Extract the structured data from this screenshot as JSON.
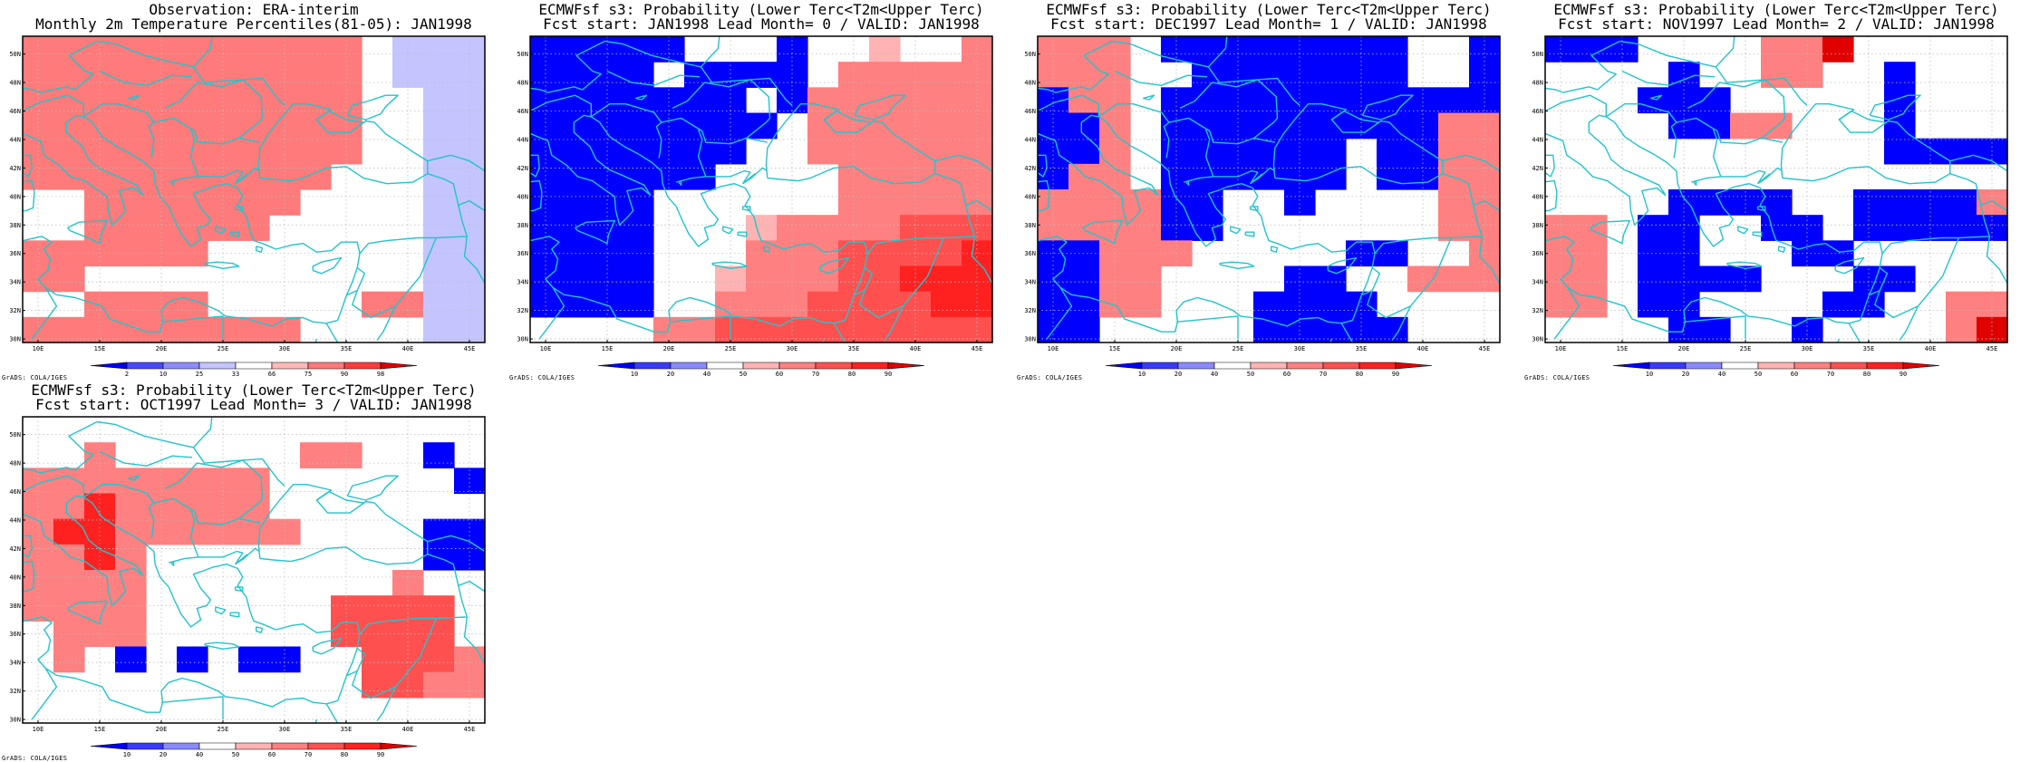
{
  "colors": {
    "coast": "#22c4cc",
    "frame": "#000000",
    "grid": "#bdbdbd"
  },
  "credit": "GrADS: COLA/IGES",
  "axis": {
    "lat_labels": [
      "30N",
      "32N",
      "34N",
      "36N",
      "38N",
      "40N",
      "42N",
      "44N",
      "46N",
      "48N",
      "50N"
    ],
    "lon_labels": [
      "10E",
      "15E",
      "20E",
      "25E",
      "30E",
      "35E",
      "40E",
      "45E"
    ]
  },
  "panels": [
    {
      "id": "obs",
      "title_lines": [
        "Observation: ERA-interim",
        "Monthly 2m Temperature Percentiles(81-05): JAN1998"
      ],
      "colorbar": {
        "labels": [
          "2",
          "10",
          "25",
          "33",
          "66",
          "75",
          "90",
          "98"
        ],
        "colors": [
          "#0000ff",
          "#4848ff",
          "#8c8cff",
          "#c4c4ff",
          "#ffffff",
          "#ffb8b8",
          "#ff7a7a",
          "#ff3a3a",
          "#e00000"
        ]
      },
      "chart_data": {
        "type": "heatmap",
        "x_range_deg_e": [
          8.75,
          46.25
        ],
        "y_range_deg_n": [
          29.75,
          51.25
        ],
        "levels_note": "1 very low, 2 low, 3 mod-low, 4 slight-low, 5 normal, 6 slight-high, 7 high, 8 very high",
        "rows_north_to_south": [
          "777777777775444",
          "777777777775444",
          "777777777775544",
          "777777777775544",
          "777777777775544",
          "777777777755544",
          "557777777555544",
          "557777775555544",
          "777777555555544",
          "775555555555544",
          "557777555557744",
          "777777777555544"
        ]
      }
    },
    {
      "id": "lead0",
      "title_lines": [
        "ECMWFsf s3: Probability (Lower Terc<T2m<Upper Terc)",
        "Fcst start: JAN1998  Lead Month= 0 / VALID: JAN1998"
      ],
      "colorbar": {
        "labels": [
          "10",
          "20",
          "40",
          "50",
          "60",
          "70",
          "80",
          "90"
        ],
        "colors": [
          "#0000ff",
          "#3a3aff",
          "#8a8aff",
          "#ffffff",
          "#ffb3b3",
          "#ff8080",
          "#ff5050",
          "#ff2020",
          "#e00000"
        ]
      },
      "chart_data": {
        "type": "heatmap",
        "x_range_deg_e": [
          8.75,
          46.25
        ],
        "y_range_deg_n": [
          29.75,
          51.25
        ],
        "levels_note": "probability class index 1..9 following the colorbar",
        "rows_north_to_south": [
          "111114441445446",
          "111141111466666",
          "111111141666666",
          "111111114666666",
          "111111144666666",
          "111111444466666",
          "111144444466666",
          "111144456666777",
          "111144466677778",
          "111144566677888",
          "111144666777788",
          "444466777777777"
        ]
      }
    },
    {
      "id": "lead1",
      "title_lines": [
        "ECMWFsf s3: Probability (Lower Terc<T2m<Upper Terc)",
        "Fcst start: DEC1997  Lead Month= 1 / VALID: JAN1998"
      ],
      "colorbar": {
        "labels": [
          "10",
          "20",
          "40",
          "50",
          "60",
          "70",
          "80",
          "90"
        ],
        "colors": [
          "#0000ff",
          "#3a3aff",
          "#8a8aff",
          "#ffffff",
          "#ffb3b3",
          "#ff8080",
          "#ff5050",
          "#ff2020",
          "#e00000"
        ]
      },
      "chart_data": {
        "type": "heatmap",
        "x_range_deg_e": [
          8.75,
          46.25
        ],
        "y_range_deg_n": [
          29.75,
          51.25
        ],
        "levels_note": "probability class index 1..9 following the colorbar",
        "rows_north_to_south": [
          "666411111111441",
          "666441111111441",
          "166411111111111",
          "116411111111166",
          "116411111141166",
          "166411111141166",
          "666611441444466",
          "666611444444466",
          "116664444411446",
          "116644441144666",
          "116644411114444",
          "114444411111444"
        ]
      }
    },
    {
      "id": "lead2",
      "title_lines": [
        "ECMWFsf s3: Probability (Lower Terc<T2m<Upper Terc)",
        "Fcst start: NOV1997  Lead Month= 2 / VALID: JAN1998"
      ],
      "colorbar": {
        "labels": [
          "10",
          "20",
          "40",
          "50",
          "60",
          "70",
          "80",
          "90"
        ],
        "colors": [
          "#0000ff",
          "#3a3aff",
          "#8a8aff",
          "#ffffff",
          "#ffb3b3",
          "#ff8080",
          "#ff5050",
          "#ff2020",
          "#e00000"
        ]
      },
      "chart_data": {
        "type": "heatmap",
        "x_range_deg_e": [
          8.75,
          46.25
        ],
        "y_range_deg_n": [
          29.75,
          51.25
        ],
        "levels_note": "probability class index 1..9 following the colorbar",
        "rows_north_to_south": [
          "111444466944444",
          "444414466441444",
          "444111444441444",
          "444411664441444",
          "444444444441111",
          "444444444444444",
          "444411114411116",
          "664114411411111",
          "664114441144444",
          "664111144411444",
          "664114444114466",
          "444411441444469"
        ]
      }
    },
    {
      "id": "lead3",
      "title_lines": [
        "ECMWFsf s3: Probability (Lower Terc<T2m<Upper Terc)",
        "Fcst start: OCT1997  Lead Month= 3 / VALID: JAN1998"
      ],
      "colorbar": {
        "labels": [
          "10",
          "20",
          "40",
          "50",
          "60",
          "70",
          "80",
          "90"
        ],
        "colors": [
          "#0000ff",
          "#3a3aff",
          "#8a8aff",
          "#ffffff",
          "#ffb3b3",
          "#ff8080",
          "#ff5050",
          "#ff2020",
          "#e00000"
        ]
      },
      "chart_data": {
        "type": "heatmap",
        "x_range_deg_e": [
          8.75,
          46.25
        ],
        "y_range_deg_n": [
          29.75,
          51.25
        ],
        "levels_note": "probability class index 1..9 following the colorbar",
        "rows_north_to_south": [
          "444444444444444",
          "446444444664414",
          "666666664444441",
          "668666664444444",
          "688666666444411",
          "668644444444411",
          "666644444444644",
          "666644444477774",
          "466644444477774",
          "464141411447776",
          "444444444447766",
          "444444444444444"
        ]
      }
    }
  ]
}
